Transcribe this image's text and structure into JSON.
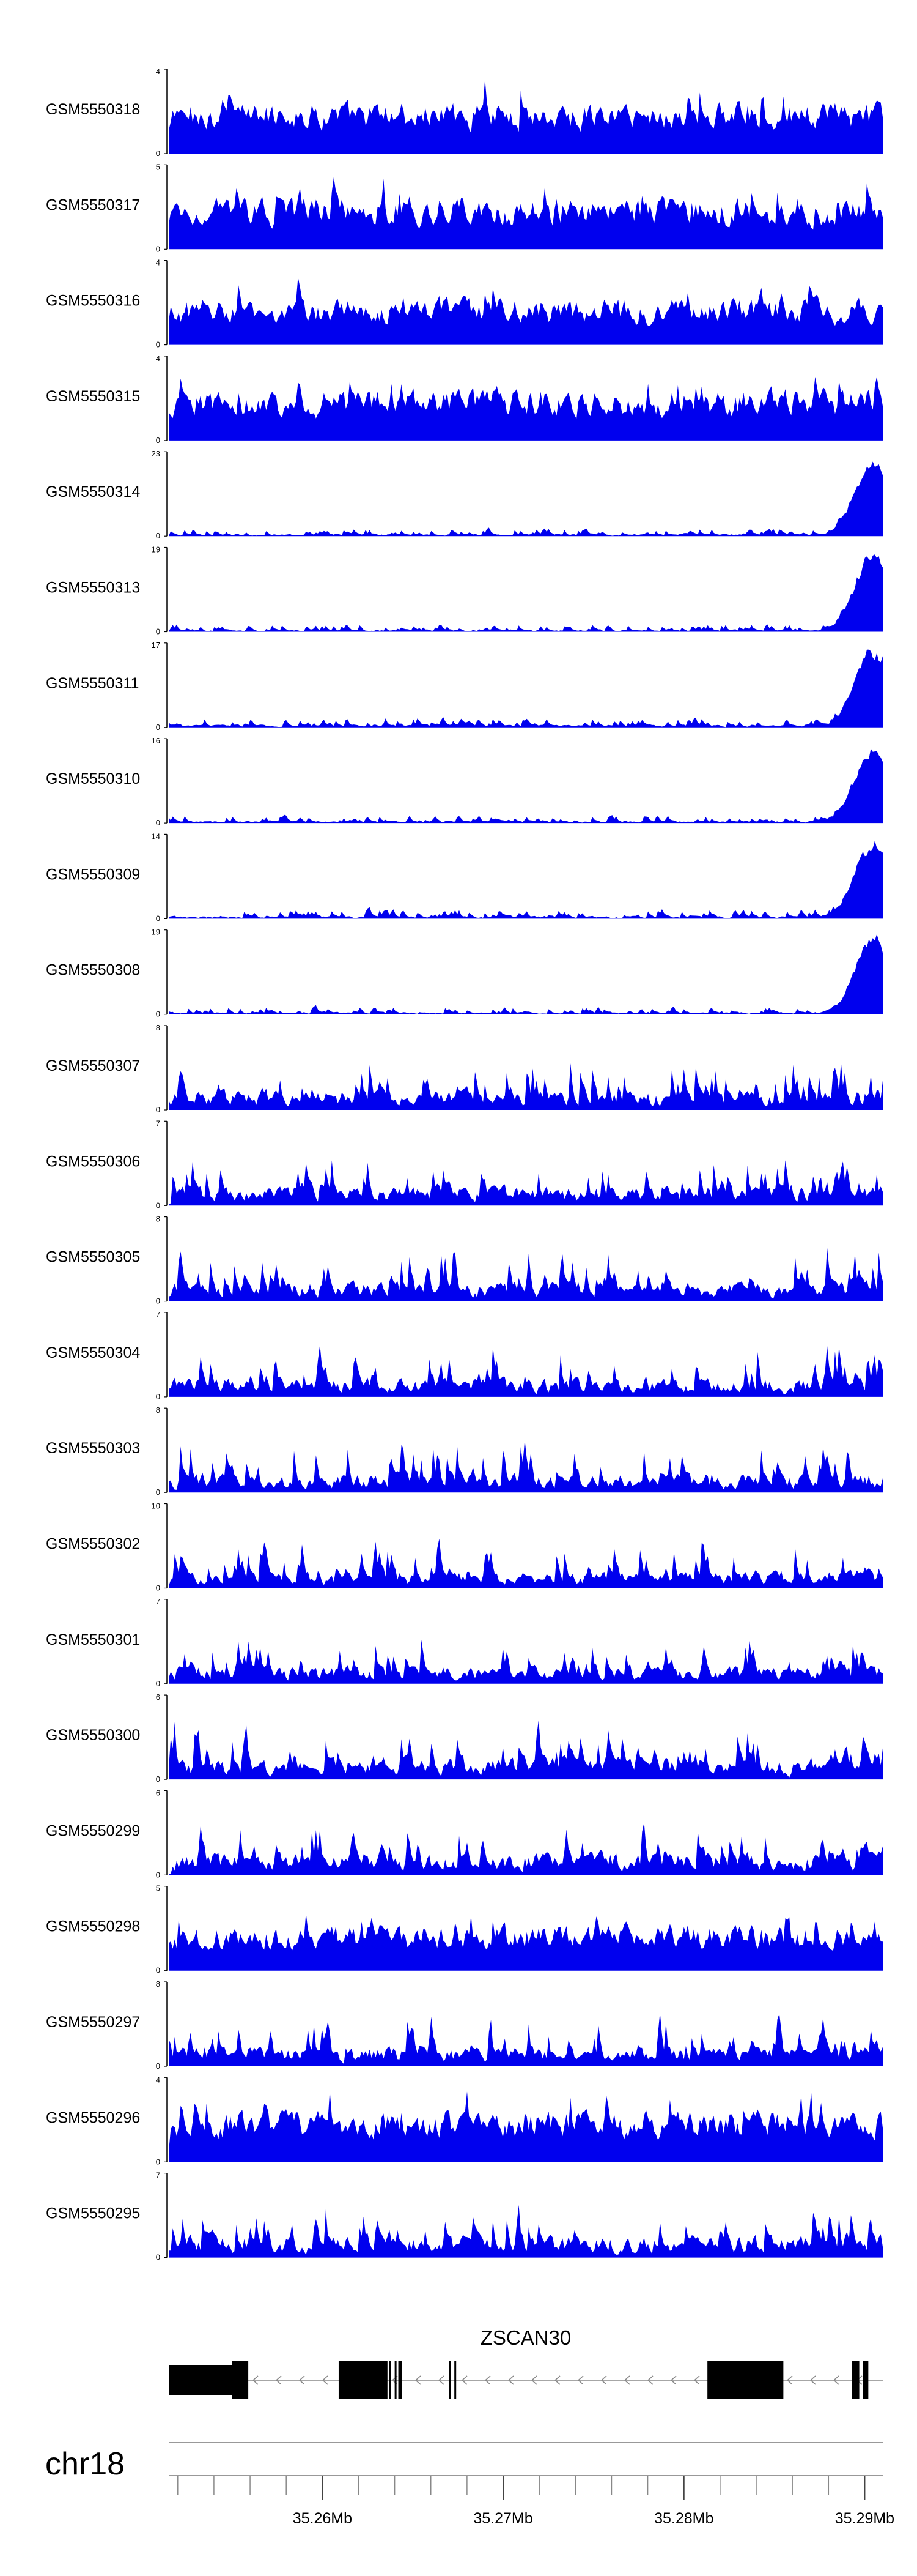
{
  "chart_data": {
    "type": "area",
    "chromosome": "chr18",
    "x_range": [
      35.2515,
      35.291
    ],
    "x_unit": "Mb",
    "x_ticks": [
      "35.26Mb",
      "35.27Mb",
      "35.28Mb",
      "35.29Mb"
    ],
    "fill_color": "#0000ee",
    "tracks": [
      {
        "name": "GSM5550318",
        "ymax": "4",
        "ymin": "0",
        "max": 4,
        "profile": "uniform",
        "level": 0.5
      },
      {
        "name": "GSM5550317",
        "ymax": "5",
        "ymin": "0",
        "max": 5,
        "profile": "uniform",
        "level": 0.5
      },
      {
        "name": "GSM5550316",
        "ymax": "4",
        "ymin": "0",
        "max": 4,
        "profile": "uniform",
        "level": 0.45
      },
      {
        "name": "GSM5550315",
        "ymax": "4",
        "ymin": "0",
        "max": 4,
        "profile": "uniform",
        "level": 0.5
      },
      {
        "name": "GSM5550314",
        "ymax": "23",
        "ymin": "0",
        "max": 23,
        "profile": "right_peak",
        "level": 0.08
      },
      {
        "name": "GSM5550313",
        "ymax": "19",
        "ymin": "0",
        "max": 19,
        "profile": "right_peak",
        "level": 0.08
      },
      {
        "name": "GSM5550311",
        "ymax": "17",
        "ymin": "0",
        "max": 17,
        "profile": "right_peak",
        "level": 0.1
      },
      {
        "name": "GSM5550310",
        "ymax": "16",
        "ymin": "0",
        "max": 16,
        "profile": "right_peak",
        "level": 0.08
      },
      {
        "name": "GSM5550309",
        "ymax": "14",
        "ymin": "0",
        "max": 14,
        "profile": "right_peak",
        "level": 0.1
      },
      {
        "name": "GSM5550308",
        "ymax": "19",
        "ymin": "0",
        "max": 19,
        "profile": "right_peak",
        "level": 0.08
      },
      {
        "name": "GSM5550307",
        "ymax": "8",
        "ymin": "0",
        "max": 8,
        "profile": "spiky",
        "level": 0.3
      },
      {
        "name": "GSM5550306",
        "ymax": "7",
        "ymin": "0",
        "max": 7,
        "profile": "spiky",
        "level": 0.3
      },
      {
        "name": "GSM5550305",
        "ymax": "8",
        "ymin": "0",
        "max": 8,
        "profile": "spiky",
        "level": 0.3
      },
      {
        "name": "GSM5550304",
        "ymax": "7",
        "ymin": "0",
        "max": 7,
        "profile": "spiky",
        "level": 0.3
      },
      {
        "name": "GSM5550303",
        "ymax": "8",
        "ymin": "0",
        "max": 8,
        "profile": "spiky",
        "level": 0.3
      },
      {
        "name": "GSM5550302",
        "ymax": "10",
        "ymin": "0",
        "max": 10,
        "profile": "spiky",
        "level": 0.25
      },
      {
        "name": "GSM5550301",
        "ymax": "7",
        "ymin": "0",
        "max": 7,
        "profile": "spiky",
        "level": 0.28
      },
      {
        "name": "GSM5550300",
        "ymax": "6",
        "ymin": "0",
        "max": 6,
        "profile": "spiky",
        "level": 0.35
      },
      {
        "name": "GSM5550299",
        "ymax": "6",
        "ymin": "0",
        "max": 6,
        "profile": "spiky",
        "level": 0.35
      },
      {
        "name": "GSM5550298",
        "ymax": "5",
        "ymin": "0",
        "max": 5,
        "profile": "uniform",
        "level": 0.45
      },
      {
        "name": "GSM5550297",
        "ymax": "8",
        "ymin": "0",
        "max": 8,
        "profile": "spiky",
        "level": 0.3
      },
      {
        "name": "GSM5550296",
        "ymax": "4",
        "ymin": "0",
        "max": 4,
        "profile": "uniform",
        "level": 0.5
      },
      {
        "name": "GSM5550295",
        "ymax": "7",
        "ymin": "0",
        "max": 7,
        "profile": "spiky",
        "level": 0.35
      }
    ],
    "gene": {
      "name": "ZSCAN30",
      "strand": "-",
      "start": 35.2515,
      "end": 35.291,
      "exons": [
        [
          35.2515,
          35.255
        ],
        [
          35.255,
          35.2559
        ],
        [
          35.2609,
          35.2636
        ],
        [
          35.2637,
          35.2638
        ],
        [
          35.264,
          35.2641
        ],
        [
          35.2642,
          35.2644
        ],
        [
          35.267,
          35.2671
        ],
        [
          35.2673,
          35.2674
        ],
        [
          35.2813,
          35.2855
        ],
        [
          35.2893,
          35.2897
        ],
        [
          35.2899,
          35.2902
        ]
      ],
      "thin_exons": [
        [
          35.2515,
          35.255
        ]
      ]
    }
  }
}
